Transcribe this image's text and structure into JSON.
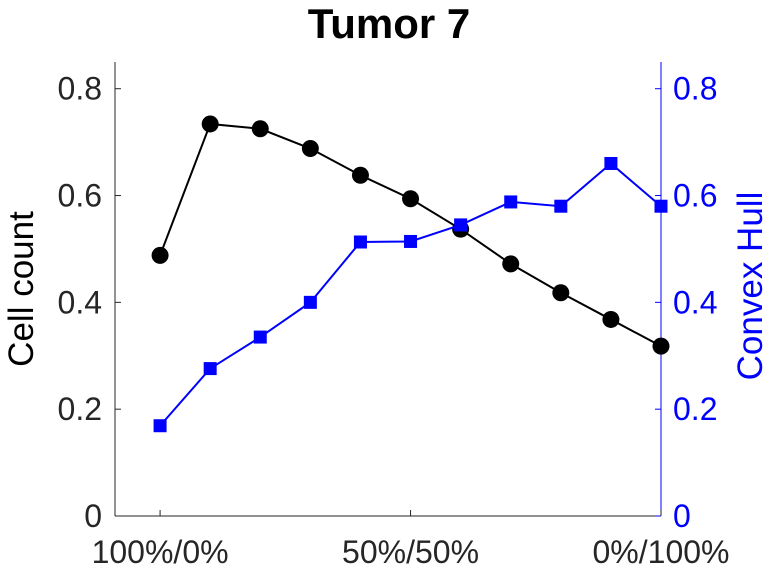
{
  "chart_data": {
    "type": "line",
    "title": "Tumor 7",
    "xlabel": "",
    "ylabel": "Cell count",
    "ylabel_right": "Convex Hull",
    "x": [
      0,
      0.1,
      0.2,
      0.3,
      0.4,
      0.5,
      0.6,
      0.7,
      0.8,
      0.9,
      1.0
    ],
    "x_ticks": [
      {
        "x": 0,
        "label": "100%/0%"
      },
      {
        "x": 0.5,
        "label": "50%/50%"
      },
      {
        "x": 1.0,
        "label": "0%/100%"
      }
    ],
    "ylim": [
      0,
      0.85
    ],
    "ylim_right": [
      0,
      0.85
    ],
    "y_ticks": [
      "0",
      "0.2",
      "0.4",
      "0.6",
      "0.8"
    ],
    "y_ticks_right": [
      "0",
      "0.2",
      "0.4",
      "0.6",
      "0.8"
    ],
    "grid": false,
    "series": [
      {
        "axis": "left",
        "color": "#000000",
        "marker": "circle",
        "values": [
          0.488,
          0.734,
          0.725,
          0.688,
          0.638,
          0.594,
          0.537,
          0.472,
          0.418,
          0.368,
          0.318
        ]
      },
      {
        "axis": "right",
        "color": "#0000ff",
        "marker": "square",
        "values": [
          0.169,
          0.276,
          0.335,
          0.4,
          0.513,
          0.514,
          0.545,
          0.588,
          0.58,
          0.66,
          0.58
        ]
      }
    ]
  }
}
